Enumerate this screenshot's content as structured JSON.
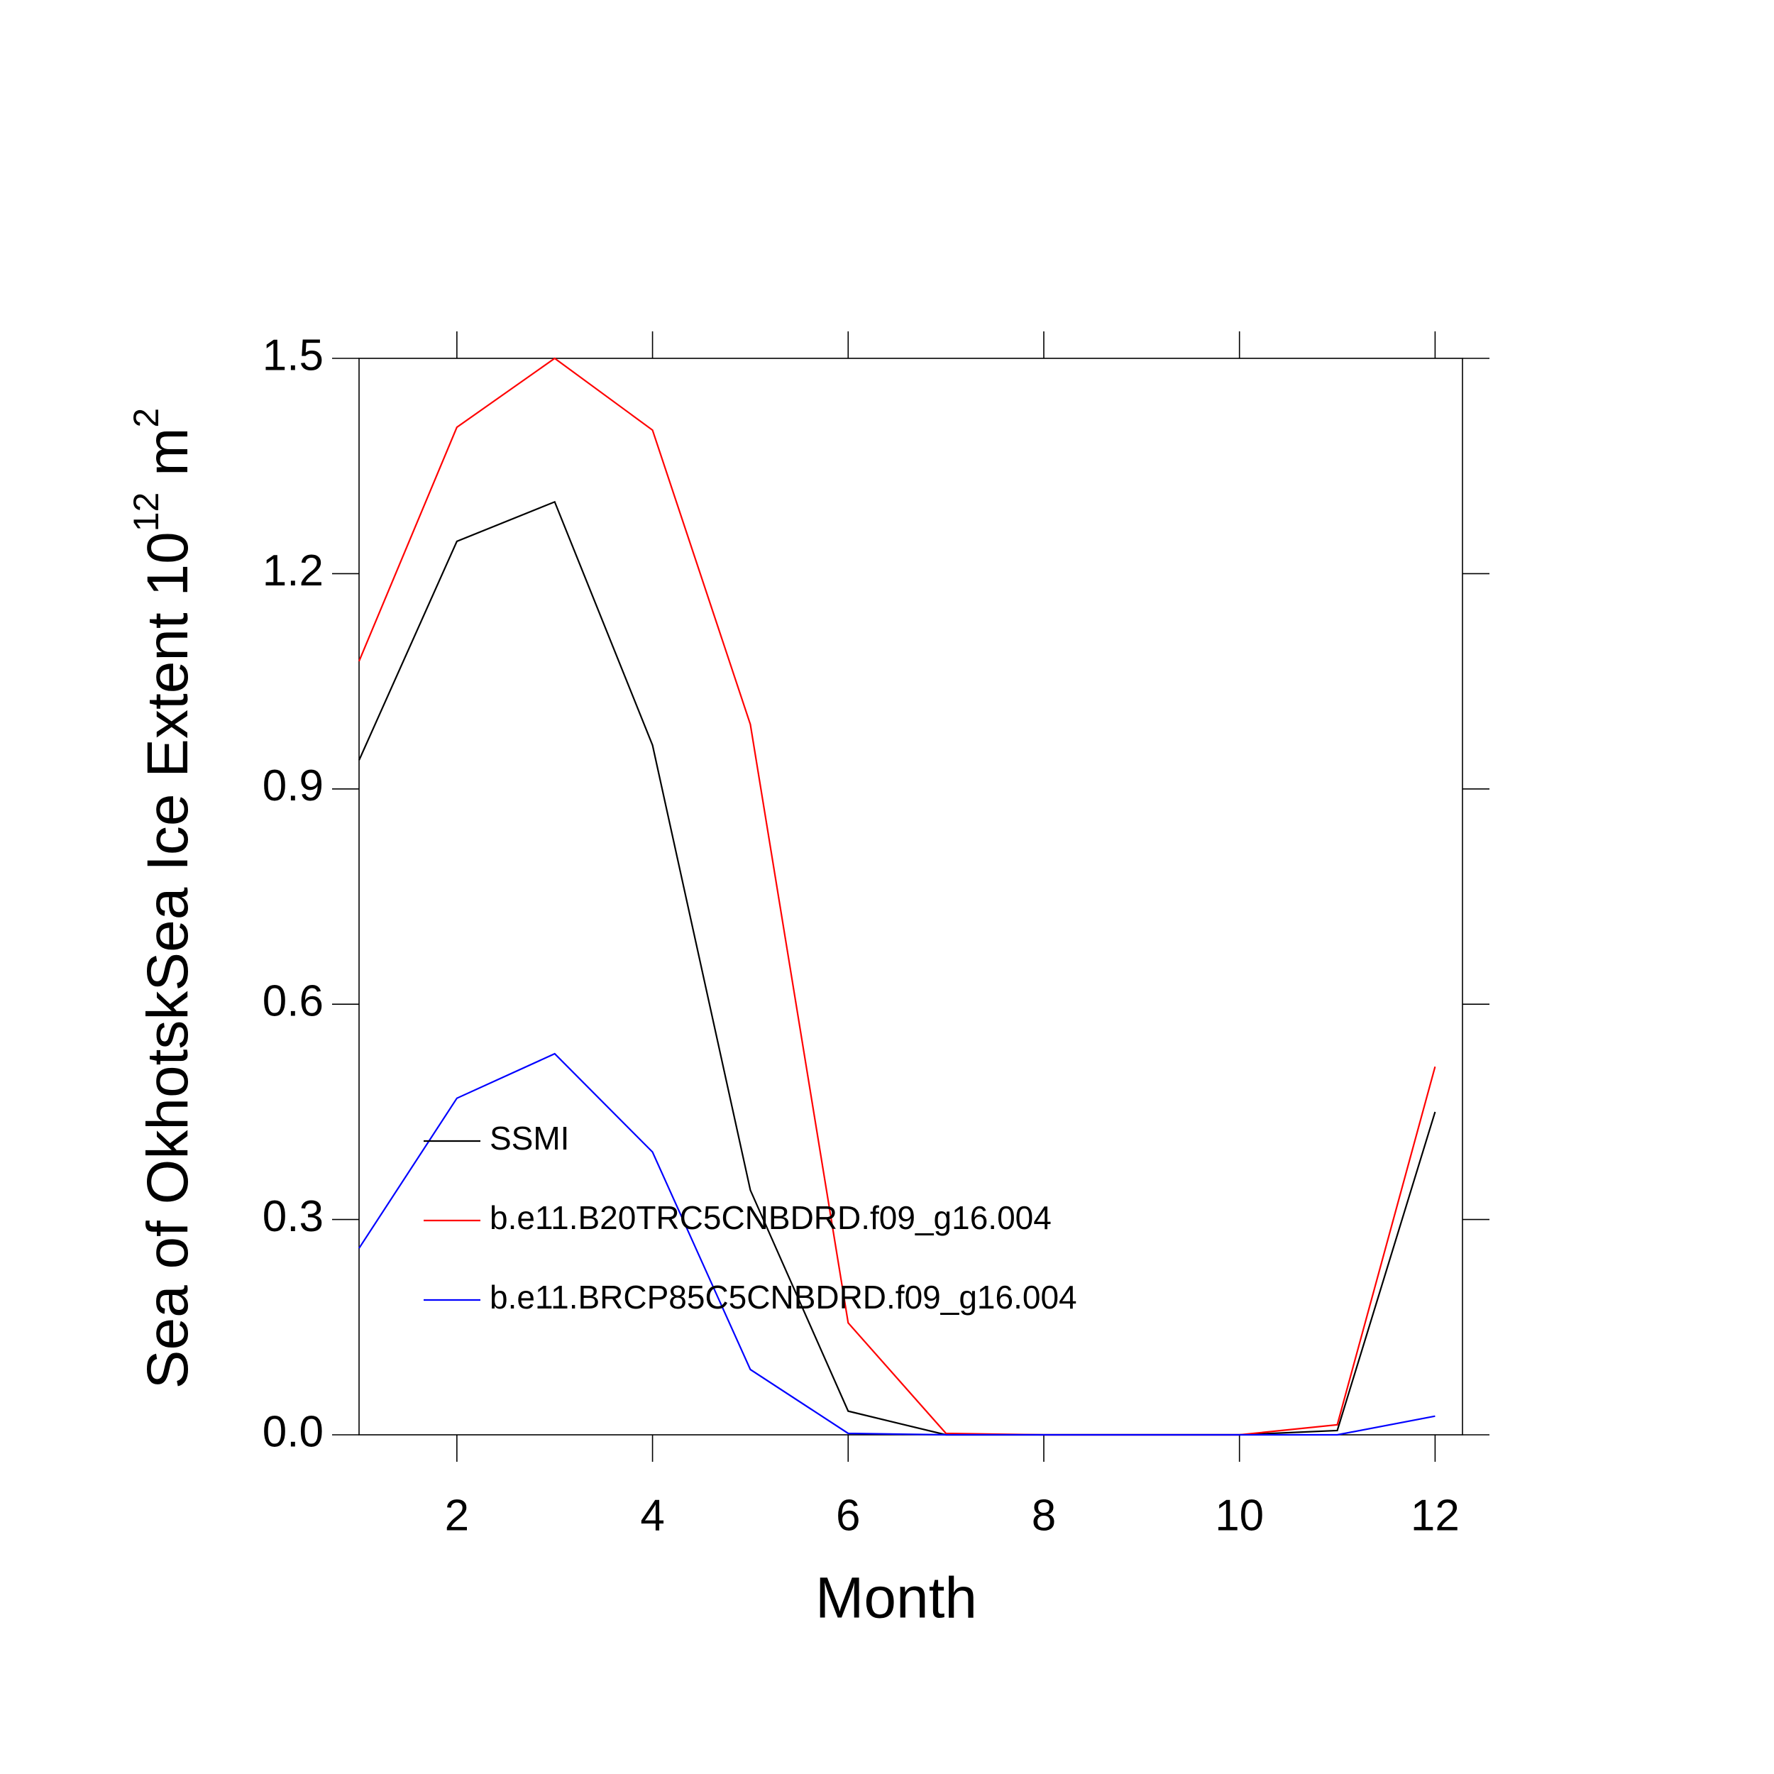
{
  "chart_data": {
    "type": "line",
    "x_label": "Month",
    "y_label": [
      "Sea of OkhotskSea Ice Extent 10",
      "12",
      " m",
      "2"
    ],
    "x": [
      1,
      2,
      3,
      4,
      5,
      6,
      7,
      8,
      9,
      10,
      11,
      12
    ],
    "series": [
      {
        "name": "SSMI",
        "color": "#000000",
        "values": [
          0.94,
          1.245,
          1.3,
          0.961,
          0.341,
          0.033,
          0,
          0,
          0,
          0,
          0.006,
          0.45
        ]
      },
      {
        "name": "b.e11.B20TRC5CNBDRD.f09_g16.004",
        "color": "#ff0000",
        "values": [
          1.078,
          1.404,
          1.5,
          1.4,
          0.99,
          0.156,
          0.002,
          0,
          0,
          0,
          0.014,
          0.513
        ]
      },
      {
        "name": "b.e11.BRCP85C5CNBDRD.f09_g16.004",
        "color": "#0000ff",
        "values": [
          0.26,
          0.469,
          0.531,
          0.394,
          0.091,
          0.002,
          0,
          0,
          0,
          0,
          0,
          0.026
        ]
      }
    ],
    "xlim": [
      1,
      12.28
    ],
    "xticks": [
      2,
      4,
      6,
      8,
      10,
      12
    ],
    "ylim": [
      0,
      1.5
    ],
    "yticks": [
      {
        "value": 0,
        "label": "0.0"
      },
      0.3,
      0.6,
      0.9,
      1.2,
      1.5
    ],
    "legend": "lower left",
    "grid": false
  }
}
